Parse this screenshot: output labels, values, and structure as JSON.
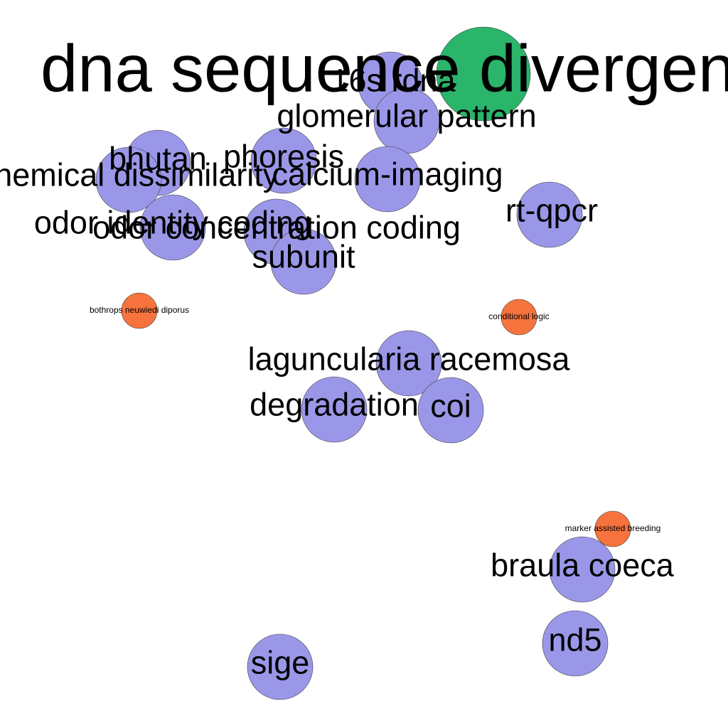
{
  "colors": {
    "hub": "#2ab56a",
    "topic": "#9b97e8",
    "minor": "#f6733e"
  },
  "nodes": [
    {
      "id": "dna-sequence-divergence",
      "label": "dna sequence divergence",
      "group": "hub"
    },
    {
      "id": "16s-rdna",
      "label": "16s rdna",
      "group": "topic"
    },
    {
      "id": "glomerular-pattern",
      "label": "glomerular pattern",
      "group": "topic"
    },
    {
      "id": "bhutan",
      "label": "bhutan",
      "group": "topic"
    },
    {
      "id": "phoresis",
      "label": "phoresis",
      "group": "topic"
    },
    {
      "id": "chemical-dissimilarity",
      "label": "chemical dissimilarity",
      "group": "topic"
    },
    {
      "id": "calcium-imaging",
      "label": "calcium-imaging",
      "group": "topic"
    },
    {
      "id": "rt-qpcr",
      "label": "rt-qpcr",
      "group": "topic"
    },
    {
      "id": "odor-identity-coding",
      "label": "odor identity coding",
      "group": "topic"
    },
    {
      "id": "odor-concentration-coding",
      "label": "odor concentration coding",
      "group": "topic"
    },
    {
      "id": "subunit",
      "label": "subunit",
      "group": "topic"
    },
    {
      "id": "bothrops-neuwiedi-diporus",
      "label": "bothrops neuwiedi diporus",
      "group": "minor"
    },
    {
      "id": "conditional-logic",
      "label": "conditional logic",
      "group": "minor"
    },
    {
      "id": "laguncularia-racemosa",
      "label": "laguncularia racemosa",
      "group": "topic"
    },
    {
      "id": "degradation",
      "label": "degradation",
      "group": "topic"
    },
    {
      "id": "coi",
      "label": "coi",
      "group": "topic"
    },
    {
      "id": "marker-assisted-breeding",
      "label": "marker assisted breeding",
      "group": "minor"
    },
    {
      "id": "braula-coeca",
      "label": "braula coeca",
      "group": "topic"
    },
    {
      "id": "nd5",
      "label": "nd5",
      "group": "topic"
    },
    {
      "id": "sige",
      "label": "sige",
      "group": "topic"
    }
  ]
}
